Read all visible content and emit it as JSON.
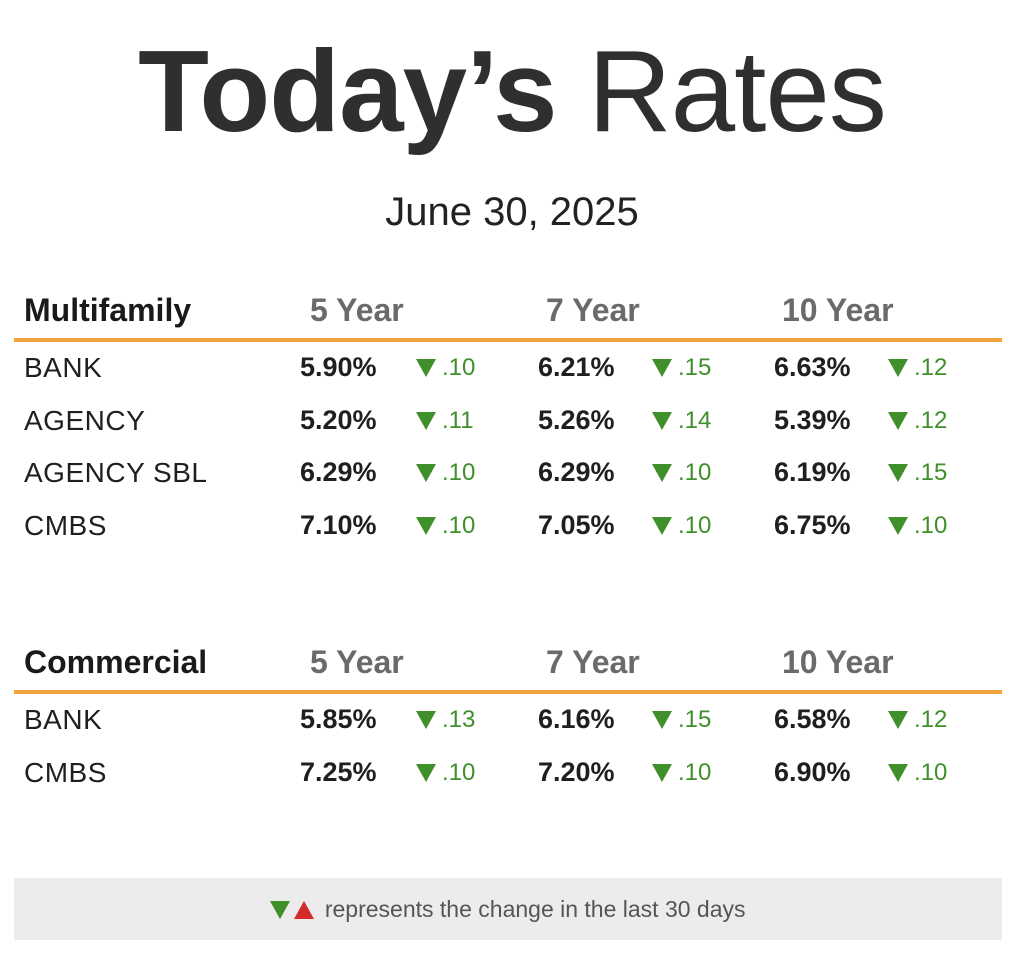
{
  "title": {
    "bold": "Today’s",
    "light": "Rates"
  },
  "date": "June 30, 2025",
  "multifamily": {
    "title": "Multifamily",
    "columns": [
      "5 Year",
      "7 Year",
      "10 Year"
    ],
    "rows": [
      {
        "lender": "BANK",
        "values": [
          {
            "rate": "5.90%",
            "change": ".10",
            "direction": "down"
          },
          {
            "rate": "6.21%",
            "change": ".15",
            "direction": "down"
          },
          {
            "rate": "6.63%",
            "change": ".12",
            "direction": "down"
          }
        ]
      },
      {
        "lender": "AGENCY",
        "values": [
          {
            "rate": "5.20%",
            "change": ".11",
            "direction": "down"
          },
          {
            "rate": "5.26%",
            "change": ".14",
            "direction": "down"
          },
          {
            "rate": "5.39%",
            "change": ".12",
            "direction": "down"
          }
        ]
      },
      {
        "lender": "AGENCY SBL",
        "values": [
          {
            "rate": "6.29%",
            "change": ".10",
            "direction": "down"
          },
          {
            "rate": "6.29%",
            "change": ".10",
            "direction": "down"
          },
          {
            "rate": "6.19%",
            "change": ".15",
            "direction": "down"
          }
        ]
      },
      {
        "lender": "CMBS",
        "values": [
          {
            "rate": "7.10%",
            "change": ".10",
            "direction": "down"
          },
          {
            "rate": "7.05%",
            "change": ".10",
            "direction": "down"
          },
          {
            "rate": "6.75%",
            "change": ".10",
            "direction": "down"
          }
        ]
      }
    ]
  },
  "commercial": {
    "title": "Commercial",
    "columns": [
      "5 Year",
      "7 Year",
      "10 Year"
    ],
    "rows": [
      {
        "lender": "BANK",
        "values": [
          {
            "rate": "5.85%",
            "change": ".13",
            "direction": "down"
          },
          {
            "rate": "6.16%",
            "change": ".15",
            "direction": "down"
          },
          {
            "rate": "6.58%",
            "change": ".12",
            "direction": "down"
          }
        ]
      },
      {
        "lender": "CMBS",
        "values": [
          {
            "rate": "7.25%",
            "change": ".10",
            "direction": "down"
          },
          {
            "rate": "7.20%",
            "change": ".10",
            "direction": "down"
          },
          {
            "rate": "6.90%",
            "change": ".10",
            "direction": "down"
          }
        ]
      }
    ]
  },
  "footer": {
    "text": "represents the change in the last 30 days"
  },
  "colors": {
    "accent": "#f2a23a",
    "down": "#3f8f2a",
    "up": "#d42a2a",
    "title": "#2f2f2f"
  },
  "icons": {
    "down": "triangle-down-icon",
    "up": "triangle-up-icon"
  }
}
